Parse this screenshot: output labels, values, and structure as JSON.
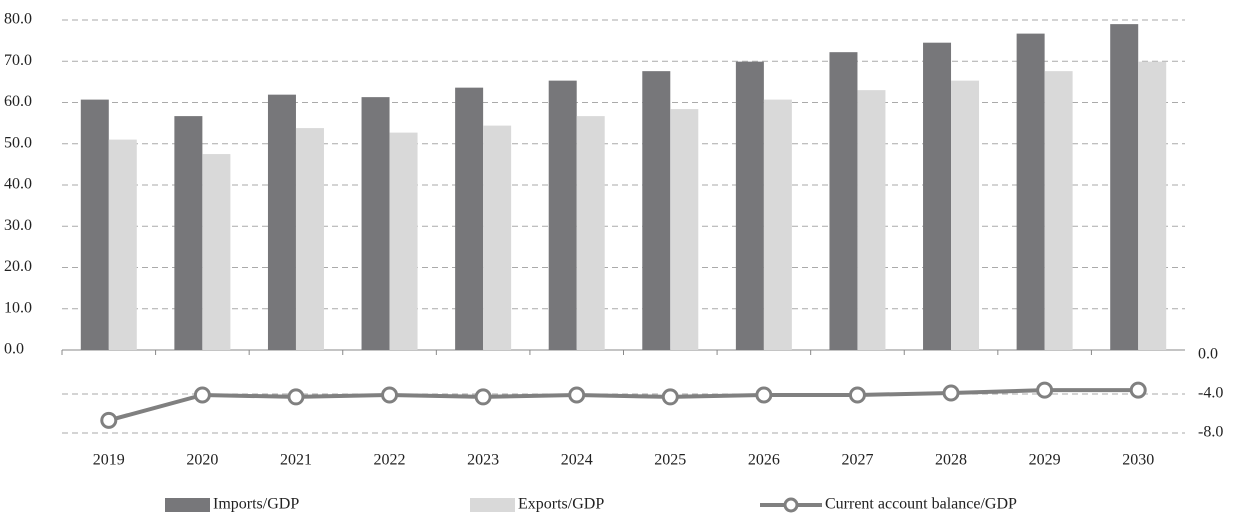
{
  "chart_data": {
    "type": "bar-line",
    "categories": [
      "2019",
      "2020",
      "2021",
      "2022",
      "2023",
      "2024",
      "2025",
      "2026",
      "2027",
      "2028",
      "2029",
      "2030"
    ],
    "series": [
      {
        "name": "Imports/GDP",
        "color": "#77777a",
        "type": "bar",
        "values": [
          60.7,
          56.7,
          61.9,
          61.3,
          63.6,
          65.3,
          67.6,
          69.9,
          72.2,
          74.5,
          76.7,
          79.0
        ]
      },
      {
        "name": "Exports/GDP",
        "color": "#d9d9d9",
        "type": "bar",
        "values": [
          51.0,
          47.5,
          53.8,
          52.7,
          54.4,
          56.7,
          58.4,
          60.7,
          63.0,
          65.3,
          67.6,
          69.9
        ]
      },
      {
        "name": "Current account balance/GDP",
        "color": "#808080",
        "type": "line",
        "axis": "y2",
        "values": [
          -6.7,
          -4.1,
          -4.3,
          -4.1,
          -4.3,
          -4.1,
          -4.3,
          -4.1,
          -4.1,
          -3.9,
          -3.6,
          -3.6
        ]
      }
    ],
    "ylim": [
      0,
      80
    ],
    "yticks": [
      {
        "value": 0,
        "label": "0.0"
      },
      {
        "value": 10,
        "label": "10.0"
      },
      {
        "value": 20,
        "label": "20.0"
      },
      {
        "value": 30,
        "label": "30.0"
      },
      {
        "value": 40,
        "label": "40.0"
      },
      {
        "value": 50,
        "label": "50.0"
      },
      {
        "value": 60,
        "label": "60.0"
      },
      {
        "value": 70,
        "label": "70.0"
      },
      {
        "value": 80,
        "label": "80.0"
      }
    ],
    "y2lim": [
      -8,
      0
    ],
    "y2ticks": [
      {
        "value": 0,
        "label": "0.0"
      },
      {
        "value": -4,
        "label": "-4.0"
      },
      {
        "value": -8,
        "label": "-8.0"
      }
    ],
    "grid": true,
    "legend": "bottom"
  }
}
